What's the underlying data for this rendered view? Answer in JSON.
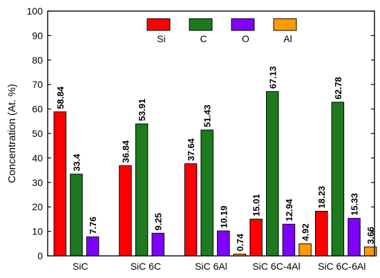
{
  "chart_data": {
    "type": "bar",
    "ylabel": "Concentration (At. %)",
    "ylim": [
      0,
      100
    ],
    "yticks": [
      0,
      10,
      20,
      30,
      40,
      50,
      60,
      70,
      80,
      90,
      100
    ],
    "categories": [
      "SiC",
      "SiC 6C",
      "SiC 6Al",
      "SiC 6C-4Al",
      "SiC 6C-6Al"
    ],
    "series": [
      {
        "name": "Si",
        "color": "#ff0000",
        "values": [
          58.84,
          36.84,
          37.64,
          15.01,
          18.23
        ],
        "labels": [
          "58.84",
          "36.84",
          "37.64",
          "15.01",
          "18.23"
        ]
      },
      {
        "name": "C",
        "color": "#1e7a1e",
        "values": [
          33.4,
          53.91,
          51.43,
          67.13,
          62.78
        ],
        "labels": [
          "33.4",
          "53.91",
          "51.43",
          "67.13",
          "62.78"
        ]
      },
      {
        "name": "O",
        "color": "#8000ff",
        "values": [
          7.76,
          9.25,
          10.19,
          12.94,
          15.33
        ],
        "labels": [
          "7.76",
          "9.25",
          "10.19",
          "12.94",
          "15.33"
        ]
      },
      {
        "name": "Al",
        "color": "#ff9900",
        "values": [
          null,
          null,
          0.74,
          4.92,
          3.66
        ],
        "labels": [
          null,
          null,
          "0.74",
          "4.92",
          "3.66"
        ]
      }
    ],
    "legend": {
      "position": "top-center",
      "orientation": "horizontal"
    },
    "grid": false
  }
}
